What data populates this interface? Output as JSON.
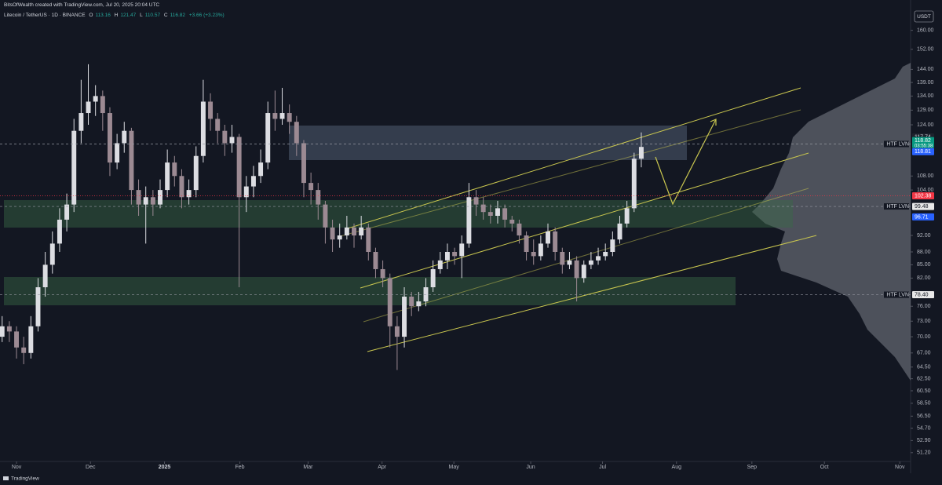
{
  "header": {
    "credit": "BitsOfWealth created with TradingView.com, Jul 20, 2025 20:04 UTC",
    "symbol": "Litecoin / TetherUS · 1D · BINANCE",
    "open_label": "O",
    "high_label": "H",
    "low_label": "L",
    "close_label": "C",
    "change": "+3.66 (+3.23%)",
    "currency": "USDT",
    "brand": "TradingView"
  },
  "chart_data": {
    "type": "candlestick",
    "log_scale": true,
    "up_color": "#dcdde2",
    "down_color": "#9c8a93",
    "categories": [
      null,
      null,
      null,
      null,
      null,
      null,
      null,
      null,
      null,
      null,
      null,
      null,
      null,
      null,
      null,
      null,
      null,
      null,
      null,
      null,
      null,
      null,
      null,
      null,
      null,
      null,
      null,
      null,
      null,
      null,
      null,
      null,
      null,
      null,
      null,
      null,
      null,
      null,
      null,
      null,
      null,
      null,
      null,
      null,
      null,
      null,
      null,
      null,
      null,
      null,
      null,
      null,
      null,
      null,
      null,
      null,
      null,
      null,
      null,
      null,
      null,
      null,
      null,
      null,
      null,
      null,
      null,
      null,
      null,
      null,
      null,
      null,
      null,
      null,
      null,
      null,
      null,
      null,
      null,
      null,
      null,
      null,
      null,
      null,
      null,
      null,
      null,
      null,
      null,
      null
    ],
    "candles": [
      [
        70,
        74,
        69,
        72
      ],
      [
        72,
        73,
        69,
        71
      ],
      [
        71,
        72,
        66,
        68
      ],
      [
        68,
        70,
        65,
        67
      ],
      [
        67,
        74,
        66,
        72
      ],
      [
        72,
        82,
        71,
        80
      ],
      [
        80,
        88,
        78,
        85
      ],
      [
        85,
        93,
        83,
        90
      ],
      [
        90,
        99,
        88,
        96
      ],
      [
        96,
        103,
        93,
        100
      ],
      [
        100,
        126,
        98,
        122
      ],
      [
        122,
        140,
        118,
        128
      ],
      [
        128,
        146,
        124,
        132
      ],
      [
        132,
        138,
        127,
        134
      ],
      [
        134,
        136,
        122,
        128
      ],
      [
        128,
        130,
        108,
        112
      ],
      [
        112,
        121,
        110,
        118
      ],
      [
        118,
        125,
        115,
        122
      ],
      [
        122,
        123,
        100,
        104
      ],
      [
        104,
        107,
        97,
        100
      ],
      [
        100,
        105,
        90,
        102
      ],
      [
        102,
        104,
        97,
        100
      ],
      [
        100,
        107,
        99,
        104
      ],
      [
        104,
        116,
        102,
        112
      ],
      [
        112,
        114,
        105,
        108
      ],
      [
        108,
        110,
        99,
        102
      ],
      [
        102,
        107,
        100,
        104
      ],
      [
        104,
        117,
        102,
        114
      ],
      [
        114,
        140,
        112,
        132
      ],
      [
        132,
        135,
        122,
        126
      ],
      [
        126,
        128,
        118,
        122
      ],
      [
        122,
        124,
        114,
        118
      ],
      [
        118,
        124,
        115,
        120
      ],
      [
        120,
        121,
        80,
        102
      ],
      [
        102,
        108,
        98,
        105
      ],
      [
        105,
        111,
        102,
        108
      ],
      [
        108,
        116,
        106,
        112
      ],
      [
        112,
        132,
        110,
        128
      ],
      [
        128,
        136,
        122,
        126
      ],
      [
        126,
        137,
        124,
        128
      ],
      [
        128,
        131,
        121,
        125
      ],
      [
        125,
        127,
        114,
        118
      ],
      [
        118,
        119,
        102,
        106
      ],
      [
        106,
        109,
        100,
        104
      ],
      [
        104,
        106,
        96,
        100
      ],
      [
        100,
        101,
        90,
        94
      ],
      [
        94,
        96,
        88,
        91
      ],
      [
        91,
        95,
        89,
        92
      ],
      [
        92,
        97,
        91,
        94
      ],
      [
        94,
        95,
        89,
        92
      ],
      [
        92,
        97,
        91,
        94
      ],
      [
        94,
        95,
        86,
        88
      ],
      [
        88,
        89,
        82,
        84
      ],
      [
        84,
        86,
        80,
        82
      ],
      [
        82,
        83,
        68,
        72
      ],
      [
        72,
        74,
        64,
        70
      ],
      [
        70,
        80,
        68,
        78
      ],
      [
        78,
        79,
        74,
        76
      ],
      [
        76,
        79,
        75,
        77
      ],
      [
        77,
        82,
        76,
        80
      ],
      [
        80,
        86,
        79,
        84
      ],
      [
        84,
        88,
        83,
        86
      ],
      [
        86,
        90,
        84,
        88
      ],
      [
        88,
        89,
        85,
        87
      ],
      [
        87,
        92,
        82,
        90
      ],
      [
        90,
        106,
        89,
        102
      ],
      [
        102,
        104,
        97,
        100
      ],
      [
        100,
        102,
        96,
        98
      ],
      [
        98,
        100,
        95,
        97
      ],
      [
        97,
        101,
        95,
        99
      ],
      [
        99,
        100,
        94,
        96
      ],
      [
        96,
        97,
        93,
        95
      ],
      [
        95,
        96,
        90,
        92
      ],
      [
        92,
        93,
        86,
        88
      ],
      [
        88,
        91,
        85,
        87
      ],
      [
        87,
        92,
        86,
        90
      ],
      [
        90,
        95,
        89,
        93
      ],
      [
        93,
        94,
        86,
        88
      ],
      [
        88,
        89,
        83,
        85
      ],
      [
        85,
        88,
        84,
        86
      ],
      [
        86,
        87,
        77,
        82
      ],
      [
        82,
        86,
        81,
        85
      ],
      [
        85,
        88,
        84,
        86
      ],
      [
        86,
        89,
        85,
        87
      ],
      [
        87,
        90,
        86,
        88
      ],
      [
        88,
        93,
        87,
        91
      ],
      [
        91,
        97,
        90,
        95
      ],
      [
        95,
        101,
        94,
        99
      ],
      [
        99,
        115,
        98,
        113.16
      ],
      [
        113.16,
        121.47,
        110.57,
        116.82
      ]
    ],
    "xlim": [
      -0.3,
      126.5
    ],
    "xticks": [
      {
        "value": 2,
        "label": "Nov"
      },
      {
        "value": 12.3,
        "label": "Dec"
      },
      {
        "value": 22.6,
        "label": "2025"
      },
      {
        "value": 33.1,
        "label": "Feb"
      },
      {
        "value": 42.6,
        "label": "Mar"
      },
      {
        "value": 52.9,
        "label": "Apr"
      },
      {
        "value": 62.9,
        "label": "May"
      },
      {
        "value": 73.6,
        "label": "Jun"
      },
      {
        "value": 83.6,
        "label": "Jul"
      },
      {
        "value": 93.9,
        "label": "Aug"
      },
      {
        "value": 104.4,
        "label": "Sep"
      },
      {
        "value": 114.5,
        "label": "Oct"
      },
      {
        "value": 125,
        "label": "Nov"
      }
    ],
    "ylim": [
      50,
      170
    ],
    "yticks": [
      {
        "value": 160,
        "label": "160.00"
      },
      {
        "value": 152,
        "label": "152.00"
      },
      {
        "value": 144,
        "label": "144.00"
      },
      {
        "value": 139,
        "label": "139.00"
      },
      {
        "value": 134,
        "label": "134.00"
      },
      {
        "value": 129,
        "label": "129.00"
      },
      {
        "value": 124,
        "label": "124.00"
      },
      {
        "value": 108,
        "label": "108.00"
      },
      {
        "value": 104,
        "label": "104.00"
      },
      {
        "value": 92,
        "label": "92.00"
      },
      {
        "value": 88,
        "label": "88.00"
      },
      {
        "value": 85,
        "label": "85.00"
      },
      {
        "value": 82,
        "label": "82.00"
      },
      {
        "value": 76,
        "label": "76.00"
      },
      {
        "value": 73,
        "label": "73.00"
      },
      {
        "value": 70,
        "label": "70.00"
      },
      {
        "value": 67,
        "label": "67.00"
      },
      {
        "value": 64.5,
        "label": "64.50"
      },
      {
        "value": 62.5,
        "label": "62.50"
      },
      {
        "value": 60.5,
        "label": "60.50"
      },
      {
        "value": 58.5,
        "label": "58.50"
      },
      {
        "value": 56.5,
        "label": "56.50"
      },
      {
        "value": 54.7,
        "label": "54.70"
      },
      {
        "value": 52.9,
        "label": "52.90"
      },
      {
        "value": 51.2,
        "label": "51.20"
      }
    ],
    "price_markers": [
      {
        "value": 117.74,
        "label": "117.74",
        "bg": "#1e222d",
        "fg": "#d1d4dc",
        "line": "dashed",
        "note": "HTF LVN"
      },
      {
        "value": 118.82,
        "label": "118.82",
        "bg": "#089981",
        "fg": "#ffffff",
        "countdown": "03:55:38"
      },
      {
        "value": 118.81,
        "label": "118.81",
        "bg": "#2962ff",
        "fg": "#ffffff"
      },
      {
        "value": 102.38,
        "label": "102.38",
        "bg": "#f23645",
        "fg": "#ffffff",
        "line": "red"
      },
      {
        "value": 99.48,
        "label": "99.48",
        "bg": "#e8e8e8",
        "fg": "#131722",
        "line": "dashed",
        "note": "HTF LVN"
      },
      {
        "value": 96.71,
        "label": "96.71",
        "bg": "#2962ff",
        "fg": "#ffffff"
      },
      {
        "value": 78.4,
        "label": "78.40",
        "bg": "#e8e8e8",
        "fg": "#131722",
        "line": "dashed",
        "note": "HTF LVN"
      }
    ]
  }
}
